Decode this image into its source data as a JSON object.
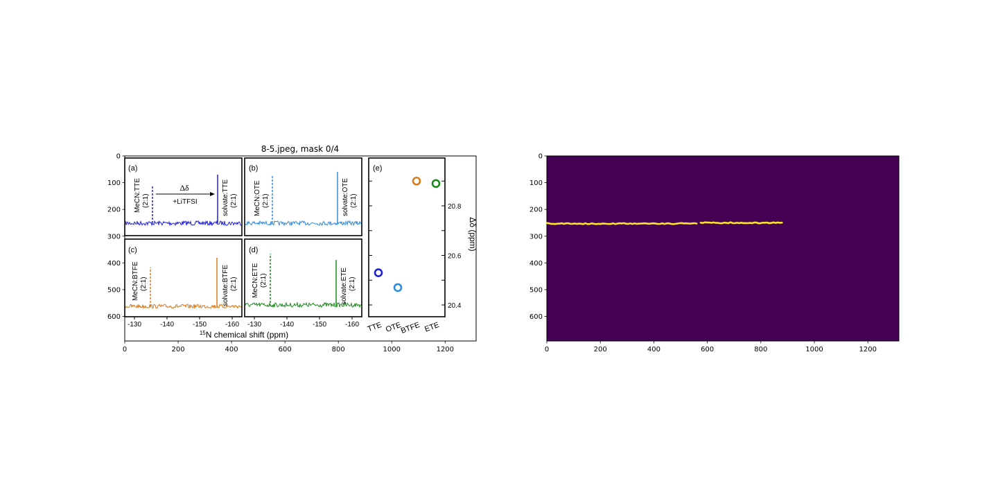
{
  "chart_data": [
    {
      "type": "image",
      "title": "8-5.jpeg, mask 0/4",
      "xticks": [
        "0",
        "200",
        "400",
        "600",
        "800",
        "1000",
        "1200"
      ],
      "yticks": [
        "0",
        "100",
        "200",
        "300",
        "400",
        "500",
        "600"
      ],
      "xlim": [
        0,
        1316
      ],
      "ylim": [
        692,
        0
      ],
      "image_content": {
        "type": "line",
        "panels": [
          {
            "label": "(a)",
            "color": "#1f1fd6",
            "left_peak_label": "MeCN:TTE",
            "left_peak_ratio": "(2:1)",
            "right_peak_label": "solvate:TTE",
            "right_peak_ratio": "(2:1)",
            "shift_symbol": "Δδ",
            "additive_label": "+LiTFSI",
            "x_ticks": [
              "-130",
              "-140",
              "-150",
              "-160"
            ]
          },
          {
            "label": "(b)",
            "color": "#2a8ae0",
            "left_peak_label": "MeCN:OTE",
            "left_peak_ratio": "(2:1)",
            "right_peak_label": "solvate:OTE",
            "right_peak_ratio": "(2:1)",
            "x_ticks": [
              "-130",
              "-140",
              "-150",
              "-160"
            ]
          },
          {
            "label": "(c)",
            "color": "#d97a1a",
            "left_peak_label": "MeCN:BTFE",
            "left_peak_ratio": "(2:1)",
            "right_peak_label": "solvate:BTFE",
            "right_peak_ratio": "(2:1)",
            "x_ticks": [
              "-130",
              "-140",
              "-150",
              "-160"
            ]
          },
          {
            "label": "(d)",
            "color": "#1a8a1a",
            "left_peak_label": "MeCN:ETE",
            "left_peak_ratio": "(2:1)",
            "right_peak_label": "solvate:ETE",
            "right_peak_ratio": "(2:1)",
            "x_ticks": [
              "-130",
              "-140",
              "-150",
              "-160"
            ]
          }
        ],
        "x_axis_label": "N chemical shift (ppm)",
        "x_axis_label_sup": "15",
        "scatter": {
          "label": "(e)",
          "categories": [
            "TTE",
            "OTE",
            "BTFE",
            "ETE"
          ],
          "values": [
            20.53,
            20.47,
            20.9,
            20.89
          ],
          "colors": [
            "#1f1fd6",
            "#2a8ae0",
            "#d97a1a",
            "#1a8a1a"
          ],
          "ylabel": "Δδ (ppm)",
          "yticks": [
            "20.4",
            "20.6",
            "20.8"
          ]
        }
      }
    },
    {
      "type": "heatmap",
      "description_role": "binary segmentation mask",
      "xticks": [
        "0",
        "200",
        "400",
        "600",
        "800",
        "1000",
        "1200"
      ],
      "yticks": [
        "0",
        "100",
        "200",
        "300",
        "400",
        "500",
        "600"
      ],
      "xlim": [
        0,
        1316
      ],
      "ylim": [
        692,
        0
      ],
      "background_color": "#440154",
      "mask_color": "#fde725",
      "mask_value_range": [
        0,
        1
      ],
      "mask_segments": [
        {
          "x_start": 0,
          "x_end": 560,
          "y": 253
        },
        {
          "x_start": 575,
          "x_end": 880,
          "y": 250
        }
      ]
    }
  ]
}
